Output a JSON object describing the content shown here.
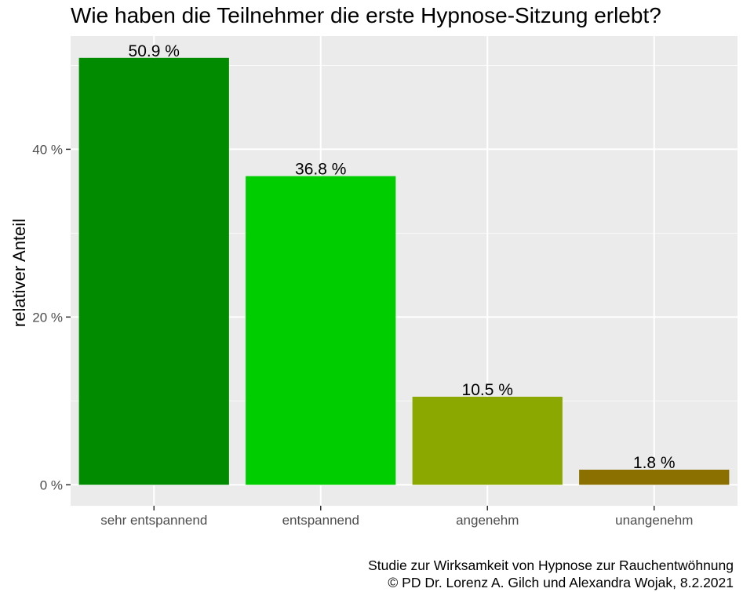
{
  "chart_data": {
    "type": "bar",
    "title": "Wie haben die Teilnehmer die erste Hypnose-Sitzung erlebt?",
    "xlabel": "",
    "ylabel": "relativer Anteil",
    "categories": [
      "sehr entspannend",
      "entspannend",
      "angenehm",
      "unangenehm"
    ],
    "values": [
      50.9,
      36.8,
      10.5,
      1.8
    ],
    "value_labels": [
      "50.9 %",
      "36.8 %",
      "10.5 %",
      "1.8 %"
    ],
    "bar_colors": [
      "#008B00",
      "#00CD00",
      "#8BA800",
      "#8B7000"
    ],
    "ylim": [
      -2.5,
      53.5
    ],
    "yticks": [
      0,
      20,
      40
    ],
    "ytick_labels": [
      "0 %",
      "20 %",
      "40 %"
    ],
    "grid": true,
    "legend": "none",
    "caption": [
      "Studie zur Wirksamkeit von Hypnose zur Rauchentwöhnung",
      "© PD Dr. Lorenz A. Gilch und Alexandra Wojak, 8.2.2021"
    ]
  },
  "colors": {
    "panel_background": "#EBEBEB",
    "grid_major": "#FFFFFF",
    "tick_text": "#4D4D4D",
    "tick_mark": "#333333"
  }
}
